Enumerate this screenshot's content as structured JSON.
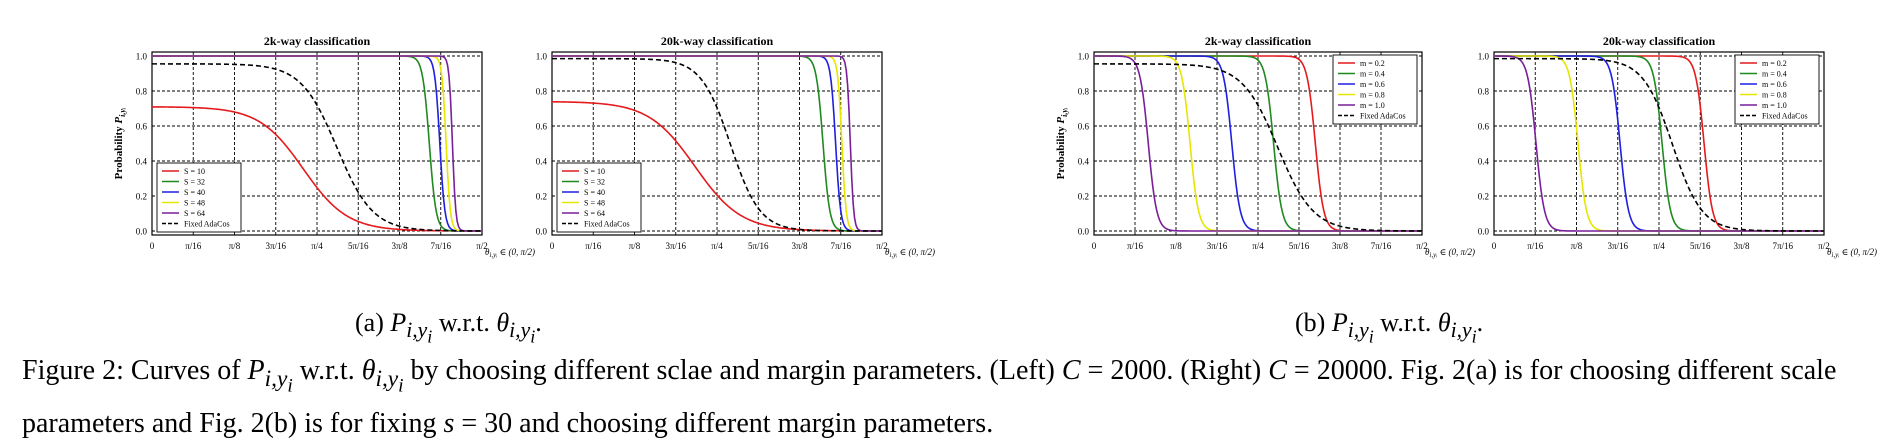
{
  "figure": {
    "subcaption_a": {
      "label": "(a)",
      "text": "w.r.t."
    },
    "subcaption_b": {
      "label": "(b)",
      "text": "w.r.t."
    },
    "caption": {
      "lead": "Figure 2:",
      "t1": "Curves of",
      "t2": "w.r.t.",
      "t3": "by choosing different sclae and margin parameters. (Left)",
      "t4": "(Right)",
      "t5": "Fig. 2(a) is for choosing different scale parameters and Fig. 2(b) is for fixing",
      "t6": "and choosing different margin parameters.",
      "c_left": "2000.",
      "c_right": "20000.",
      "s_val": "30"
    }
  },
  "axis_text": {
    "ylabel": "Probability",
    "xlabel": "θ",
    "x_ticks": [
      "0",
      "π/16",
      "π/8",
      "3π/16",
      "π/4",
      "5π/16",
      "3π/8",
      "7π/16",
      "π/2"
    ],
    "y_ticks": [
      "0.0",
      "0.2",
      "0.4",
      "0.6",
      "0.8",
      "1.0"
    ]
  },
  "chart_data": [
    {
      "type": "line",
      "title": "2k-way classification",
      "ylabel": "Probability",
      "xlim": [
        0,
        1.5708
      ],
      "ylim": [
        0,
        1.0
      ],
      "grid": true,
      "legend": "bottom-left",
      "series": [
        {
          "name": "S = 10",
          "color": "#e41a1c",
          "kind": "curve",
          "y0": 0.71,
          "c": 0.72,
          "w": 0.105
        },
        {
          "name": "S = 32",
          "color": "#1f8a1f",
          "kind": "curve",
          "y0": 1.0,
          "c": 1.32,
          "w": 0.016
        },
        {
          "name": "S = 40",
          "color": "#1f1fe0",
          "kind": "curve",
          "y0": 1.0,
          "c": 1.37,
          "w": 0.012
        },
        {
          "name": "S = 48",
          "color": "#e6e600",
          "kind": "curve",
          "y0": 1.0,
          "c": 1.4,
          "w": 0.01
        },
        {
          "name": "S = 64",
          "color": "#7a1f9a",
          "kind": "curve",
          "y0": 1.0,
          "c": 1.43,
          "w": 0.008
        },
        {
          "name": "Fixed AdaCos",
          "color": "#000000",
          "kind": "dashed",
          "y0": 0.955,
          "c": 0.88,
          "w": 0.085
        }
      ]
    },
    {
      "type": "line",
      "title": "20k-way classification",
      "xlim": [
        0,
        1.5708
      ],
      "ylim": [
        0,
        1.0
      ],
      "grid": true,
      "legend": "bottom-left",
      "series": [
        {
          "name": "S = 10",
          "color": "#e41a1c",
          "kind": "curve",
          "y0": 0.74,
          "c": 0.68,
          "w": 0.11
        },
        {
          "name": "S = 32",
          "color": "#1f8a1f",
          "kind": "curve",
          "y0": 1.0,
          "c": 1.29,
          "w": 0.016
        },
        {
          "name": "S = 40",
          "color": "#1f1fe0",
          "kind": "curve",
          "y0": 1.0,
          "c": 1.35,
          "w": 0.012
        },
        {
          "name": "S = 48",
          "color": "#e6e600",
          "kind": "curve",
          "y0": 1.0,
          "c": 1.38,
          "w": 0.01
        },
        {
          "name": "S = 64",
          "color": "#7a1f9a",
          "kind": "curve",
          "y0": 1.0,
          "c": 1.42,
          "w": 0.008
        },
        {
          "name": "Fixed AdaCos",
          "color": "#000000",
          "kind": "dashed",
          "y0": 0.985,
          "c": 0.85,
          "w": 0.07
        }
      ]
    },
    {
      "type": "line",
      "title": "2k-way classification",
      "ylabel": "Probability",
      "xlim": [
        0,
        1.5708
      ],
      "ylim": [
        0,
        1.0
      ],
      "grid": true,
      "legend": "top-right",
      "series": [
        {
          "name": "m = 0.2",
          "color": "#e41a1c",
          "kind": "curve",
          "y0": 1.0,
          "c": 1.06,
          "w": 0.02
        },
        {
          "name": "m = 0.4",
          "color": "#1f8a1f",
          "kind": "curve",
          "y0": 1.0,
          "c": 0.86,
          "w": 0.02
        },
        {
          "name": "m = 0.6",
          "color": "#1f1fe0",
          "kind": "curve",
          "y0": 1.0,
          "c": 0.66,
          "w": 0.02
        },
        {
          "name": "m = 0.8",
          "color": "#e6e600",
          "kind": "curve",
          "y0": 1.0,
          "c": 0.46,
          "w": 0.02
        },
        {
          "name": "m = 1.0",
          "color": "#7a1f9a",
          "kind": "curve",
          "y0": 1.0,
          "c": 0.26,
          "w": 0.02
        },
        {
          "name": "Fixed AdaCos",
          "color": "#000000",
          "kind": "dashed",
          "y0": 0.955,
          "c": 0.88,
          "w": 0.085
        }
      ]
    },
    {
      "type": "line",
      "title": "20k-way classification",
      "xlim": [
        0,
        1.5708
      ],
      "ylim": [
        0,
        1.0
      ],
      "grid": true,
      "legend": "top-right",
      "series": [
        {
          "name": "m = 0.2",
          "color": "#e41a1c",
          "kind": "curve",
          "y0": 1.0,
          "c": 1.0,
          "w": 0.02
        },
        {
          "name": "m = 0.4",
          "color": "#1f8a1f",
          "kind": "curve",
          "y0": 1.0,
          "c": 0.8,
          "w": 0.02
        },
        {
          "name": "m = 0.6",
          "color": "#1f1fe0",
          "kind": "curve",
          "y0": 1.0,
          "c": 0.6,
          "w": 0.02
        },
        {
          "name": "m = 0.8",
          "color": "#e6e600",
          "kind": "curve",
          "y0": 1.0,
          "c": 0.4,
          "w": 0.02
        },
        {
          "name": "m = 1.0",
          "color": "#7a1f9a",
          "kind": "curve",
          "y0": 1.0,
          "c": 0.2,
          "w": 0.02
        },
        {
          "name": "Fixed AdaCos",
          "color": "#000000",
          "kind": "dashed",
          "y0": 0.985,
          "c": 0.85,
          "w": 0.07
        }
      ]
    }
  ]
}
